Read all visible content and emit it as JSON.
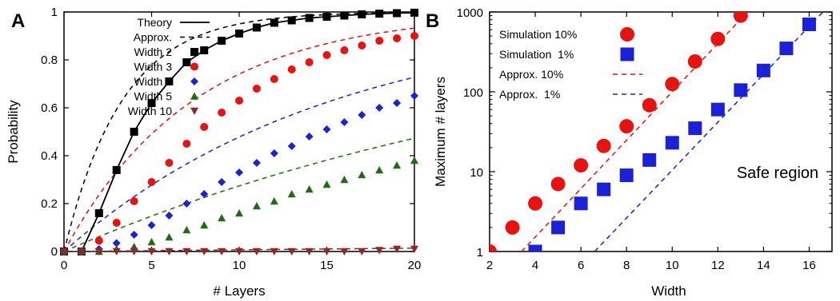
{
  "chart_data": [
    {
      "panel": "A",
      "type": "line",
      "title": "",
      "xlabel": "# Layers",
      "ylabel": "Probability",
      "xlim": [
        0,
        20
      ],
      "ylim": [
        0,
        1
      ],
      "xticks": [
        "0",
        "5",
        "10",
        "15",
        "20"
      ],
      "yticks": [
        "0",
        "0.2",
        "0.4",
        "0.6",
        "0.8",
        "1"
      ],
      "legend_position": "top-left",
      "legend": {
        "theory": "Theory",
        "approx": "Approx."
      },
      "theory_curve": {
        "name": "Theory",
        "color": "#000000",
        "x": [
          1,
          2,
          3,
          4,
          5,
          6,
          7,
          8,
          9,
          10,
          11,
          12,
          13,
          14,
          15,
          16,
          17,
          18,
          19,
          20
        ],
        "y": [
          0,
          0.16,
          0.34,
          0.5,
          0.62,
          0.71,
          0.79,
          0.84,
          0.88,
          0.91,
          0.935,
          0.955,
          0.965,
          0.975,
          0.98,
          0.985,
          0.99,
          0.993,
          0.995,
          0.997
        ]
      },
      "series": [
        {
          "name": "Width 2",
          "color": "#000000",
          "marker": "square",
          "approx_rate": 0.3,
          "x": [
            0,
            1,
            2,
            3,
            4,
            5,
            6,
            7,
            8,
            9,
            10,
            11,
            12,
            13,
            14,
            15,
            16,
            17,
            18,
            19,
            20
          ],
          "y": [
            0,
            0,
            0.16,
            0.34,
            0.5,
            0.62,
            0.71,
            0.79,
            0.84,
            0.88,
            0.91,
            0.935,
            0.955,
            0.965,
            0.975,
            0.98,
            0.985,
            0.99,
            0.993,
            0.995,
            0.997
          ]
        },
        {
          "name": "Width 3",
          "color": "#e8120e",
          "marker": "circle",
          "approx_rate": 0.135,
          "x": [
            0,
            1,
            2,
            3,
            4,
            5,
            6,
            7,
            8,
            9,
            10,
            11,
            12,
            13,
            14,
            15,
            16,
            17,
            18,
            19,
            20
          ],
          "y": [
            0,
            0,
            0.045,
            0.12,
            0.21,
            0.29,
            0.37,
            0.45,
            0.52,
            0.58,
            0.63,
            0.68,
            0.72,
            0.76,
            0.79,
            0.82,
            0.84,
            0.86,
            0.88,
            0.89,
            0.9
          ]
        },
        {
          "name": "Width 4",
          "color": "#1a21d6",
          "marker": "diamond",
          "approx_rate": 0.065,
          "x": [
            0,
            1,
            2,
            3,
            4,
            5,
            6,
            7,
            8,
            9,
            10,
            11,
            12,
            13,
            14,
            15,
            16,
            17,
            18,
            19,
            20
          ],
          "y": [
            0,
            0,
            0.01,
            0.035,
            0.07,
            0.11,
            0.15,
            0.2,
            0.24,
            0.29,
            0.33,
            0.37,
            0.41,
            0.44,
            0.48,
            0.51,
            0.54,
            0.57,
            0.6,
            0.62,
            0.65
          ]
        },
        {
          "name": "Width 5",
          "color": "#1e6b12",
          "marker": "triangle",
          "approx_rate": 0.032,
          "x": [
            0,
            1,
            2,
            3,
            4,
            5,
            6,
            7,
            8,
            9,
            10,
            11,
            12,
            13,
            14,
            15,
            16,
            17,
            18,
            19,
            20
          ],
          "y": [
            0,
            0,
            0,
            0.01,
            0.02,
            0.04,
            0.06,
            0.09,
            0.11,
            0.14,
            0.16,
            0.19,
            0.21,
            0.24,
            0.26,
            0.28,
            0.3,
            0.32,
            0.34,
            0.36,
            0.38
          ]
        },
        {
          "name": "Width 10",
          "color": "#8b2a26",
          "marker": "triangle-down",
          "approx_rate": 0.0007,
          "x": [
            0,
            1,
            2,
            3,
            4,
            5,
            6,
            7,
            8,
            9,
            10,
            11,
            12,
            13,
            14,
            15,
            16,
            17,
            18,
            19,
            20
          ],
          "y": [
            0,
            0,
            0,
            0,
            0,
            0,
            0,
            0,
            0,
            0,
            0,
            0,
            0,
            0,
            0,
            0,
            0,
            0,
            0.005,
            0.01,
            0.01
          ]
        }
      ]
    },
    {
      "panel": "B",
      "type": "scatter",
      "title": "",
      "xlabel": "Width",
      "ylabel": "Maximum # layers",
      "xlim": [
        2,
        17
      ],
      "ylim": [
        1,
        1000
      ],
      "y_scale": "log",
      "xticks": [
        "2",
        "4",
        "6",
        "8",
        "10",
        "12",
        "14",
        "16"
      ],
      "yticks": [
        "1",
        "10",
        "100",
        "1000"
      ],
      "legend_position": "top-left",
      "annotation": "Safe region",
      "series": [
        {
          "name": "Simulation 10%",
          "color": "#e8120e",
          "marker": "circle",
          "x": [
            2,
            3,
            4,
            5,
            6,
            7,
            8,
            9,
            10,
            11,
            12,
            13
          ],
          "y": [
            1,
            2,
            4,
            7,
            12,
            21,
            37,
            68,
            125,
            240,
            460,
            900
          ]
        },
        {
          "name": "Simulation  1%",
          "color": "#1a21d6",
          "marker": "square",
          "x": [
            4,
            5,
            6,
            7,
            8,
            9,
            10,
            11,
            12,
            13,
            14,
            15,
            16
          ],
          "y": [
            1,
            2,
            4,
            6,
            9,
            14,
            23,
            35,
            60,
            105,
            185,
            350,
            700
          ]
        },
        {
          "name": "Approx. 10%",
          "color": "#e8120e",
          "style": "dashed",
          "x": [
            3.4,
            13.3
          ],
          "y": [
            1,
            1000
          ]
        },
        {
          "name": "Approx.  1%",
          "color": "#1a21d6",
          "style": "dashed",
          "x": [
            6.6,
            16.6
          ],
          "y": [
            1,
            1000
          ]
        }
      ]
    }
  ]
}
